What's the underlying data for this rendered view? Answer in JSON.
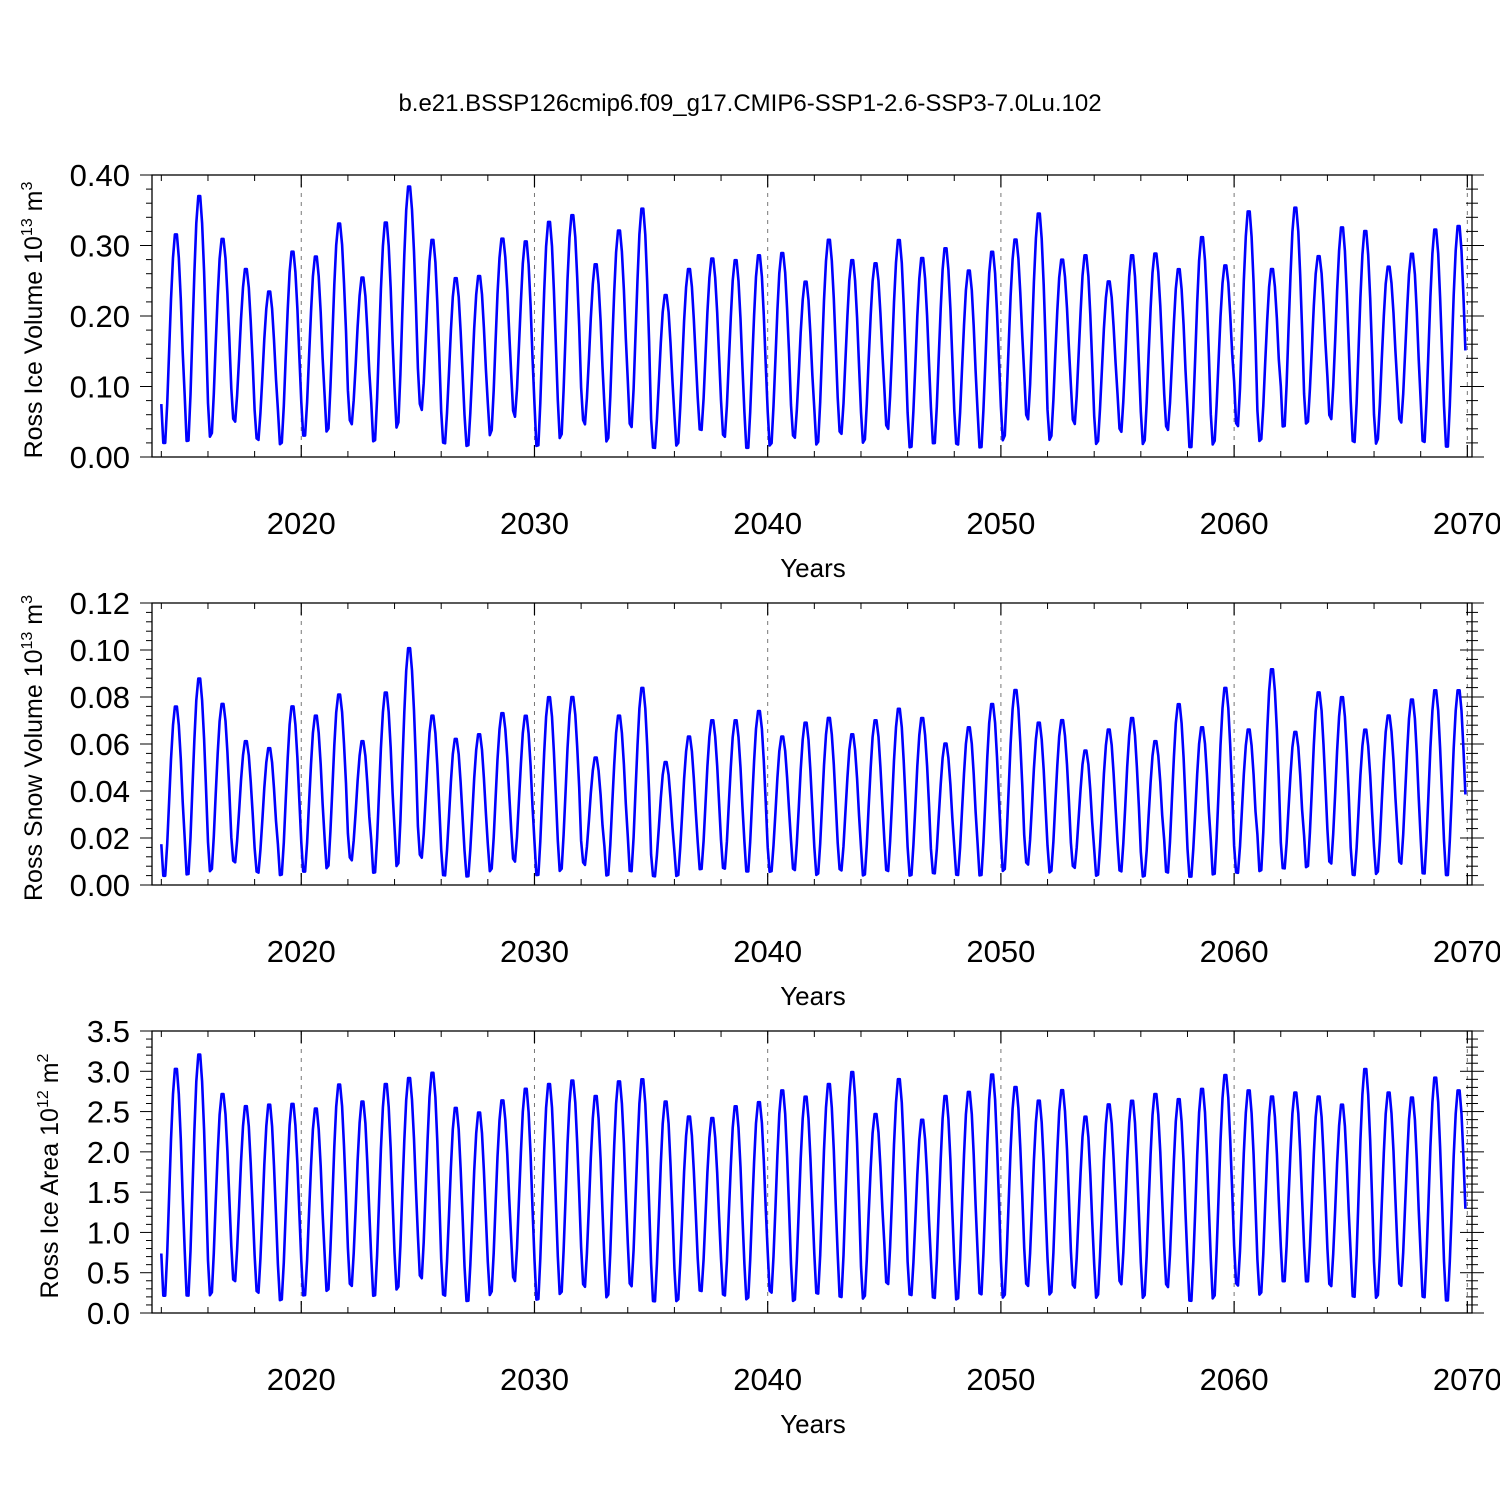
{
  "title": "b.e21.BSSP126cmip6.f09_g17.CMIP6-SSP1-2.6-SSP3-7.0Lu.102",
  "line_color": "#0000ff",
  "chart_data": [
    {
      "type": "line",
      "name_label": "Ross Ice Volume",
      "ylabel_main": "Ross Ice Volume 10",
      "ylabel_exp": "13",
      "ylabel_unit": " m",
      "ylabel_unit_exp": "3",
      "xlabel": "Years",
      "xlim": [
        2013.6,
        2070.2
      ],
      "ylim": [
        0,
        0.4
      ],
      "yticks": [
        "0.00",
        "0.10",
        "0.20",
        "0.30",
        "0.40"
      ],
      "ytick_values": [
        0,
        0.1,
        0.2,
        0.3,
        0.4
      ],
      "xticks": [
        "2020",
        "2030",
        "2040",
        "2050",
        "2060",
        "2070"
      ],
      "xtick_values": [
        2020,
        2030,
        2040,
        2050,
        2060,
        2070
      ],
      "grid": "dashed vertical at decades",
      "annual_max": [
        0.32,
        0.375,
        0.313,
        0.27,
        0.238,
        0.295,
        0.288,
        0.335,
        0.258,
        0.337,
        0.388,
        0.312,
        0.257,
        0.26,
        0.313,
        0.31,
        0.338,
        0.347,
        0.277,
        0.325,
        0.357,
        0.233,
        0.27,
        0.285,
        0.283,
        0.29,
        0.293,
        0.252,
        0.312,
        0.283,
        0.278,
        0.312,
        0.286,
        0.3,
        0.268,
        0.295,
        0.312,
        0.35,
        0.283,
        0.29,
        0.252,
        0.29,
        0.292,
        0.27,
        0.316,
        0.275,
        0.353,
        0.27,
        0.358,
        0.288,
        0.33,
        0.325,
        0.273,
        0.292,
        0.327,
        0.332
      ],
      "annual_min": [
        0.008,
        0.012,
        0.05,
        0.02,
        0.005,
        0.02,
        0.02,
        0.05,
        0.008,
        0.02,
        0.075,
        0.012,
        0.005,
        0.012,
        0.065,
        0.002,
        0.008,
        0.05,
        0.005,
        0.04,
        0.005,
        0.002,
        0.03,
        0.025,
        0.002,
        0.002,
        0.025,
        0.002,
        0.03,
        0.005,
        0.04,
        0.002,
        0.008,
        0.01,
        0.002,
        0.005,
        0.055,
        0.008,
        0.05,
        0.005,
        0.035,
        0.002,
        0.04,
        0.002,
        0.002,
        0.04,
        0.01,
        0.03,
        0.035,
        0.055,
        0.012,
        0.002,
        0.05,
        0.012,
        0.002,
        0.002
      ]
    },
    {
      "type": "line",
      "name_label": "Ross Snow Volume",
      "ylabel_main": "Ross Snow Volume 10",
      "ylabel_exp": "13",
      "ylabel_unit": " m",
      "ylabel_unit_exp": "3",
      "xlabel": "Years",
      "xlim": [
        2013.6,
        2070.2
      ],
      "ylim": [
        0,
        0.12
      ],
      "yticks": [
        "0.00",
        "0.02",
        "0.04",
        "0.06",
        "0.08",
        "0.10",
        "0.12"
      ],
      "ytick_values": [
        0,
        0.02,
        0.04,
        0.06,
        0.08,
        0.1,
        0.12
      ],
      "xticks": [
        "2020",
        "2030",
        "2040",
        "2050",
        "2060",
        "2070"
      ],
      "xtick_values": [
        2020,
        2030,
        2040,
        2050,
        2060,
        2070
      ],
      "grid": "dashed vertical at decades",
      "annual_max": [
        0.077,
        0.089,
        0.078,
        0.062,
        0.059,
        0.077,
        0.073,
        0.082,
        0.062,
        0.083,
        0.102,
        0.073,
        0.063,
        0.065,
        0.074,
        0.073,
        0.081,
        0.081,
        0.055,
        0.073,
        0.085,
        0.053,
        0.064,
        0.071,
        0.071,
        0.075,
        0.064,
        0.07,
        0.072,
        0.065,
        0.071,
        0.076,
        0.072,
        0.061,
        0.068,
        0.078,
        0.084,
        0.07,
        0.071,
        0.058,
        0.067,
        0.072,
        0.062,
        0.078,
        0.068,
        0.085,
        0.067,
        0.093,
        0.066,
        0.083,
        0.081,
        0.067,
        0.073,
        0.08,
        0.084,
        0.084
      ],
      "annual_min": [
        0.001,
        0.002,
        0.009,
        0.004,
        0.001,
        0.003,
        0.003,
        0.011,
        0.002,
        0.003,
        0.012,
        0.002,
        0.001,
        0.002,
        0.01,
        0.001,
        0.002,
        0.009,
        0.001,
        0.003,
        0.002,
        0.001,
        0.004,
        0.005,
        0.003,
        0.003,
        0.005,
        0.001,
        0.005,
        0.001,
        0.004,
        0.001,
        0.003,
        0.002,
        0.001,
        0.002,
        0.008,
        0.002,
        0.007,
        0.001,
        0.004,
        0.001,
        0.003,
        0.001,
        0.001,
        0.003,
        0.002,
        0.005,
        0.004,
        0.008,
        0.002,
        0.001,
        0.008,
        0.002,
        0.001,
        0.001
      ]
    },
    {
      "type": "line",
      "name_label": "Ross Ice Area",
      "ylabel_main": "Ross Ice Area 10",
      "ylabel_exp": "12",
      "ylabel_unit": " m",
      "ylabel_unit_exp": "2",
      "xlabel": "Years",
      "xlim": [
        2013.6,
        2070.2
      ],
      "ylim": [
        0,
        3.5
      ],
      "yticks": [
        "0.0",
        "0.5",
        "1.0",
        "1.5",
        "2.0",
        "2.5",
        "3.0",
        "3.5"
      ],
      "ytick_values": [
        0,
        0.5,
        1.0,
        1.5,
        2.0,
        2.5,
        3.0,
        3.5
      ],
      "xticks": [
        "2020",
        "2030",
        "2040",
        "2050",
        "2060",
        "2070"
      ],
      "xtick_values": [
        2020,
        2030,
        2040,
        2050,
        2060,
        2070
      ],
      "grid": "dashed vertical at decades",
      "annual_max": [
        3.07,
        3.25,
        2.75,
        2.6,
        2.62,
        2.63,
        2.57,
        2.87,
        2.66,
        2.88,
        2.95,
        3.02,
        2.58,
        2.52,
        2.67,
        2.82,
        2.88,
        2.92,
        2.73,
        2.91,
        2.94,
        2.66,
        2.47,
        2.45,
        2.6,
        2.65,
        2.8,
        2.72,
        2.88,
        3.03,
        2.5,
        2.94,
        2.43,
        2.73,
        2.78,
        3.0,
        2.84,
        2.67,
        2.8,
        2.47,
        2.62,
        2.67,
        2.75,
        2.69,
        2.82,
        2.99,
        2.8,
        2.72,
        2.77,
        2.72,
        2.62,
        3.07,
        2.77,
        2.71,
        2.96,
        2.8
      ],
      "annual_min": [
        0.1,
        0.08,
        0.35,
        0.2,
        0.05,
        0.12,
        0.15,
        0.3,
        0.1,
        0.15,
        0.4,
        0.15,
        0.05,
        0.08,
        0.4,
        0.05,
        0.1,
        0.3,
        0.05,
        0.3,
        0.05,
        0.03,
        0.2,
        0.15,
        0.05,
        0.2,
        0.03,
        0.15,
        0.1,
        0.05,
        0.3,
        0.15,
        0.1,
        0.05,
        0.15,
        0.05,
        0.3,
        0.1,
        0.3,
        0.05,
        0.35,
        0.05,
        0.3,
        0.05,
        0.03,
        0.3,
        0.1,
        0.3,
        0.3,
        0.3,
        0.1,
        0.05,
        0.3,
        0.1,
        0.05,
        0.05
      ]
    }
  ]
}
